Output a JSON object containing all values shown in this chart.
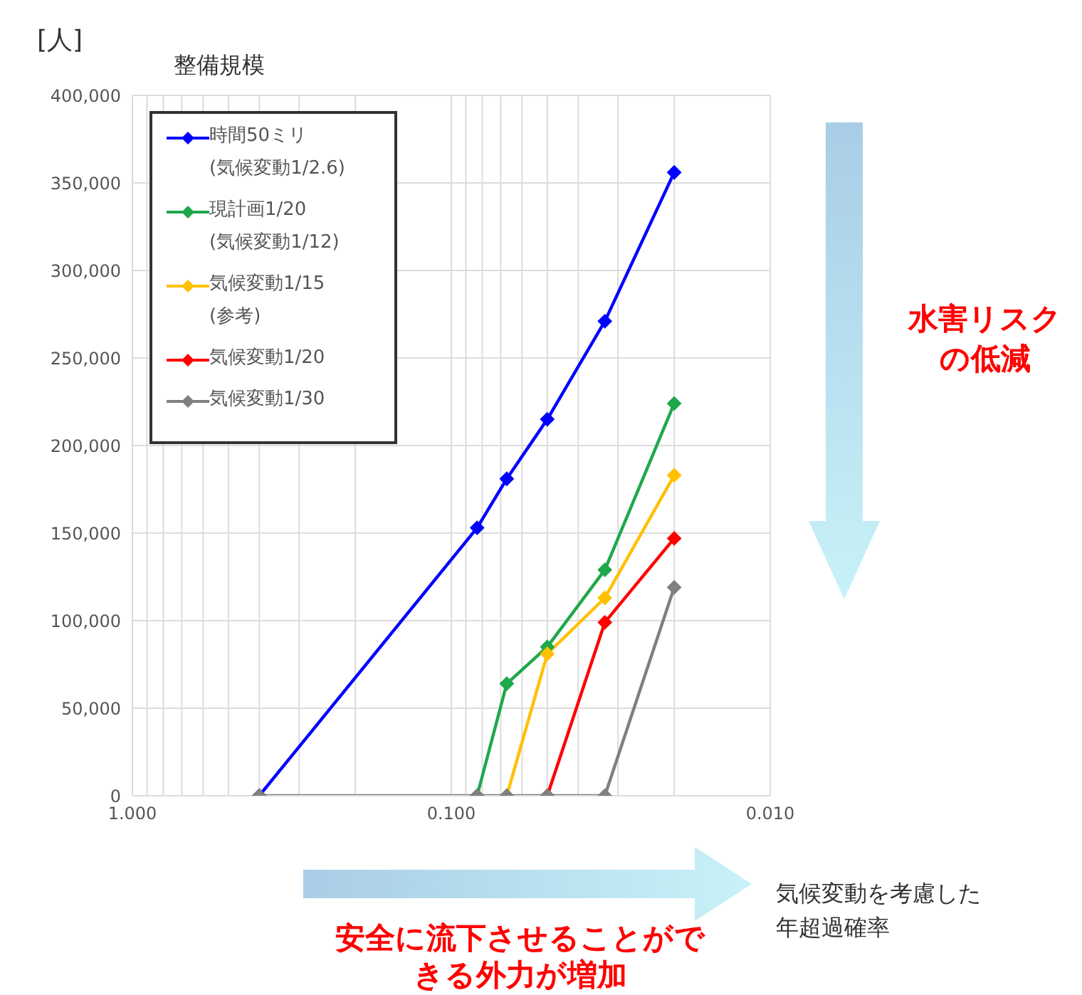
{
  "chart_data": {
    "type": "line",
    "ylabel": "整備規模",
    "log": "x",
    "grid": true,
    "legend": "top left",
    "marker": "diamond",
    "line_style": "solid",
    "xlim": [
      1,
      0.01
    ],
    "xticks": [
      {
        "value": 1,
        "label": "1.000"
      },
      {
        "value": 0.9,
        "label": null
      },
      {
        "value": 0.8,
        "label": null
      },
      {
        "value": 0.7,
        "label": null
      },
      {
        "value": 0.6,
        "label": null
      },
      {
        "value": 0.5,
        "label": null
      },
      {
        "value": 0.4,
        "label": null
      },
      {
        "value": 0.3,
        "label": null
      },
      {
        "value": 0.2,
        "label": null
      },
      {
        "value": 0.1,
        "label": "0.100"
      },
      {
        "value": 0.09,
        "label": null
      },
      {
        "value": 0.08,
        "label": null
      },
      {
        "value": 0.07,
        "label": null
      },
      {
        "value": 0.06,
        "label": null
      },
      {
        "value": 0.05,
        "label": null
      },
      {
        "value": 0.04,
        "label": null
      },
      {
        "value": 0.03,
        "label": null
      },
      {
        "value": 0.02,
        "label": null
      },
      {
        "value": 0.01,
        "label": "0.010"
      }
    ],
    "ylim": [
      0,
      400000
    ],
    "yticks": [
      0,
      {
        "value": 50000,
        "label": "50,000"
      },
      {
        "value": 100000,
        "label": "100,000"
      },
      {
        "value": 150000,
        "label": "150,000"
      },
      {
        "value": 200000,
        "label": "200,000"
      },
      {
        "value": 250000,
        "label": "250,000"
      },
      {
        "value": 300000,
        "label": "300,000"
      },
      {
        "value": 350000,
        "label": "350,000"
      },
      {
        "value": 400000,
        "label": "400,000"
      }
    ],
    "series": [
      {
        "name": "時間50ミリ\n(気候変動1/2.6)",
        "color": "#0000ff",
        "x": [
          0.4,
          0.083,
          0.067,
          0.05,
          0.033,
          0.02
        ],
        "values": [
          0,
          153000,
          181000,
          215000,
          271000,
          356000
        ]
      },
      {
        "name": "現計画1/20\n(気候変動1/12)",
        "color": "#1fa84a",
        "x": [
          0.083,
          0.067,
          0.05,
          0.033,
          0.02
        ],
        "values": [
          0,
          64000,
          85000,
          129000,
          224000
        ]
      },
      {
        "name": "気候変動1/15\n(参考)",
        "color": "#ffc000",
        "x": [
          0.067,
          0.05,
          0.033,
          0.02
        ],
        "values": [
          0,
          81000,
          113000,
          183000
        ]
      },
      {
        "name": "気候変動1/20",
        "color": "#ff0000",
        "x": [
          0.05,
          0.033,
          0.02
        ],
        "values": [
          0,
          99000,
          147000
        ]
      },
      {
        "name": "気候変動1/30",
        "color": "#808080",
        "x": [
          0.4,
          0.083,
          0.067,
          0.05,
          0.033,
          0.02
        ],
        "values": [
          0,
          0,
          0,
          0,
          0,
          119000
        ]
      }
    ],
    "annotations": [
      "[人]",
      "水害リスクの低減",
      "安全に流下させることができる外力が増加",
      "気候変動を考慮した年超過確率"
    ]
  }
}
